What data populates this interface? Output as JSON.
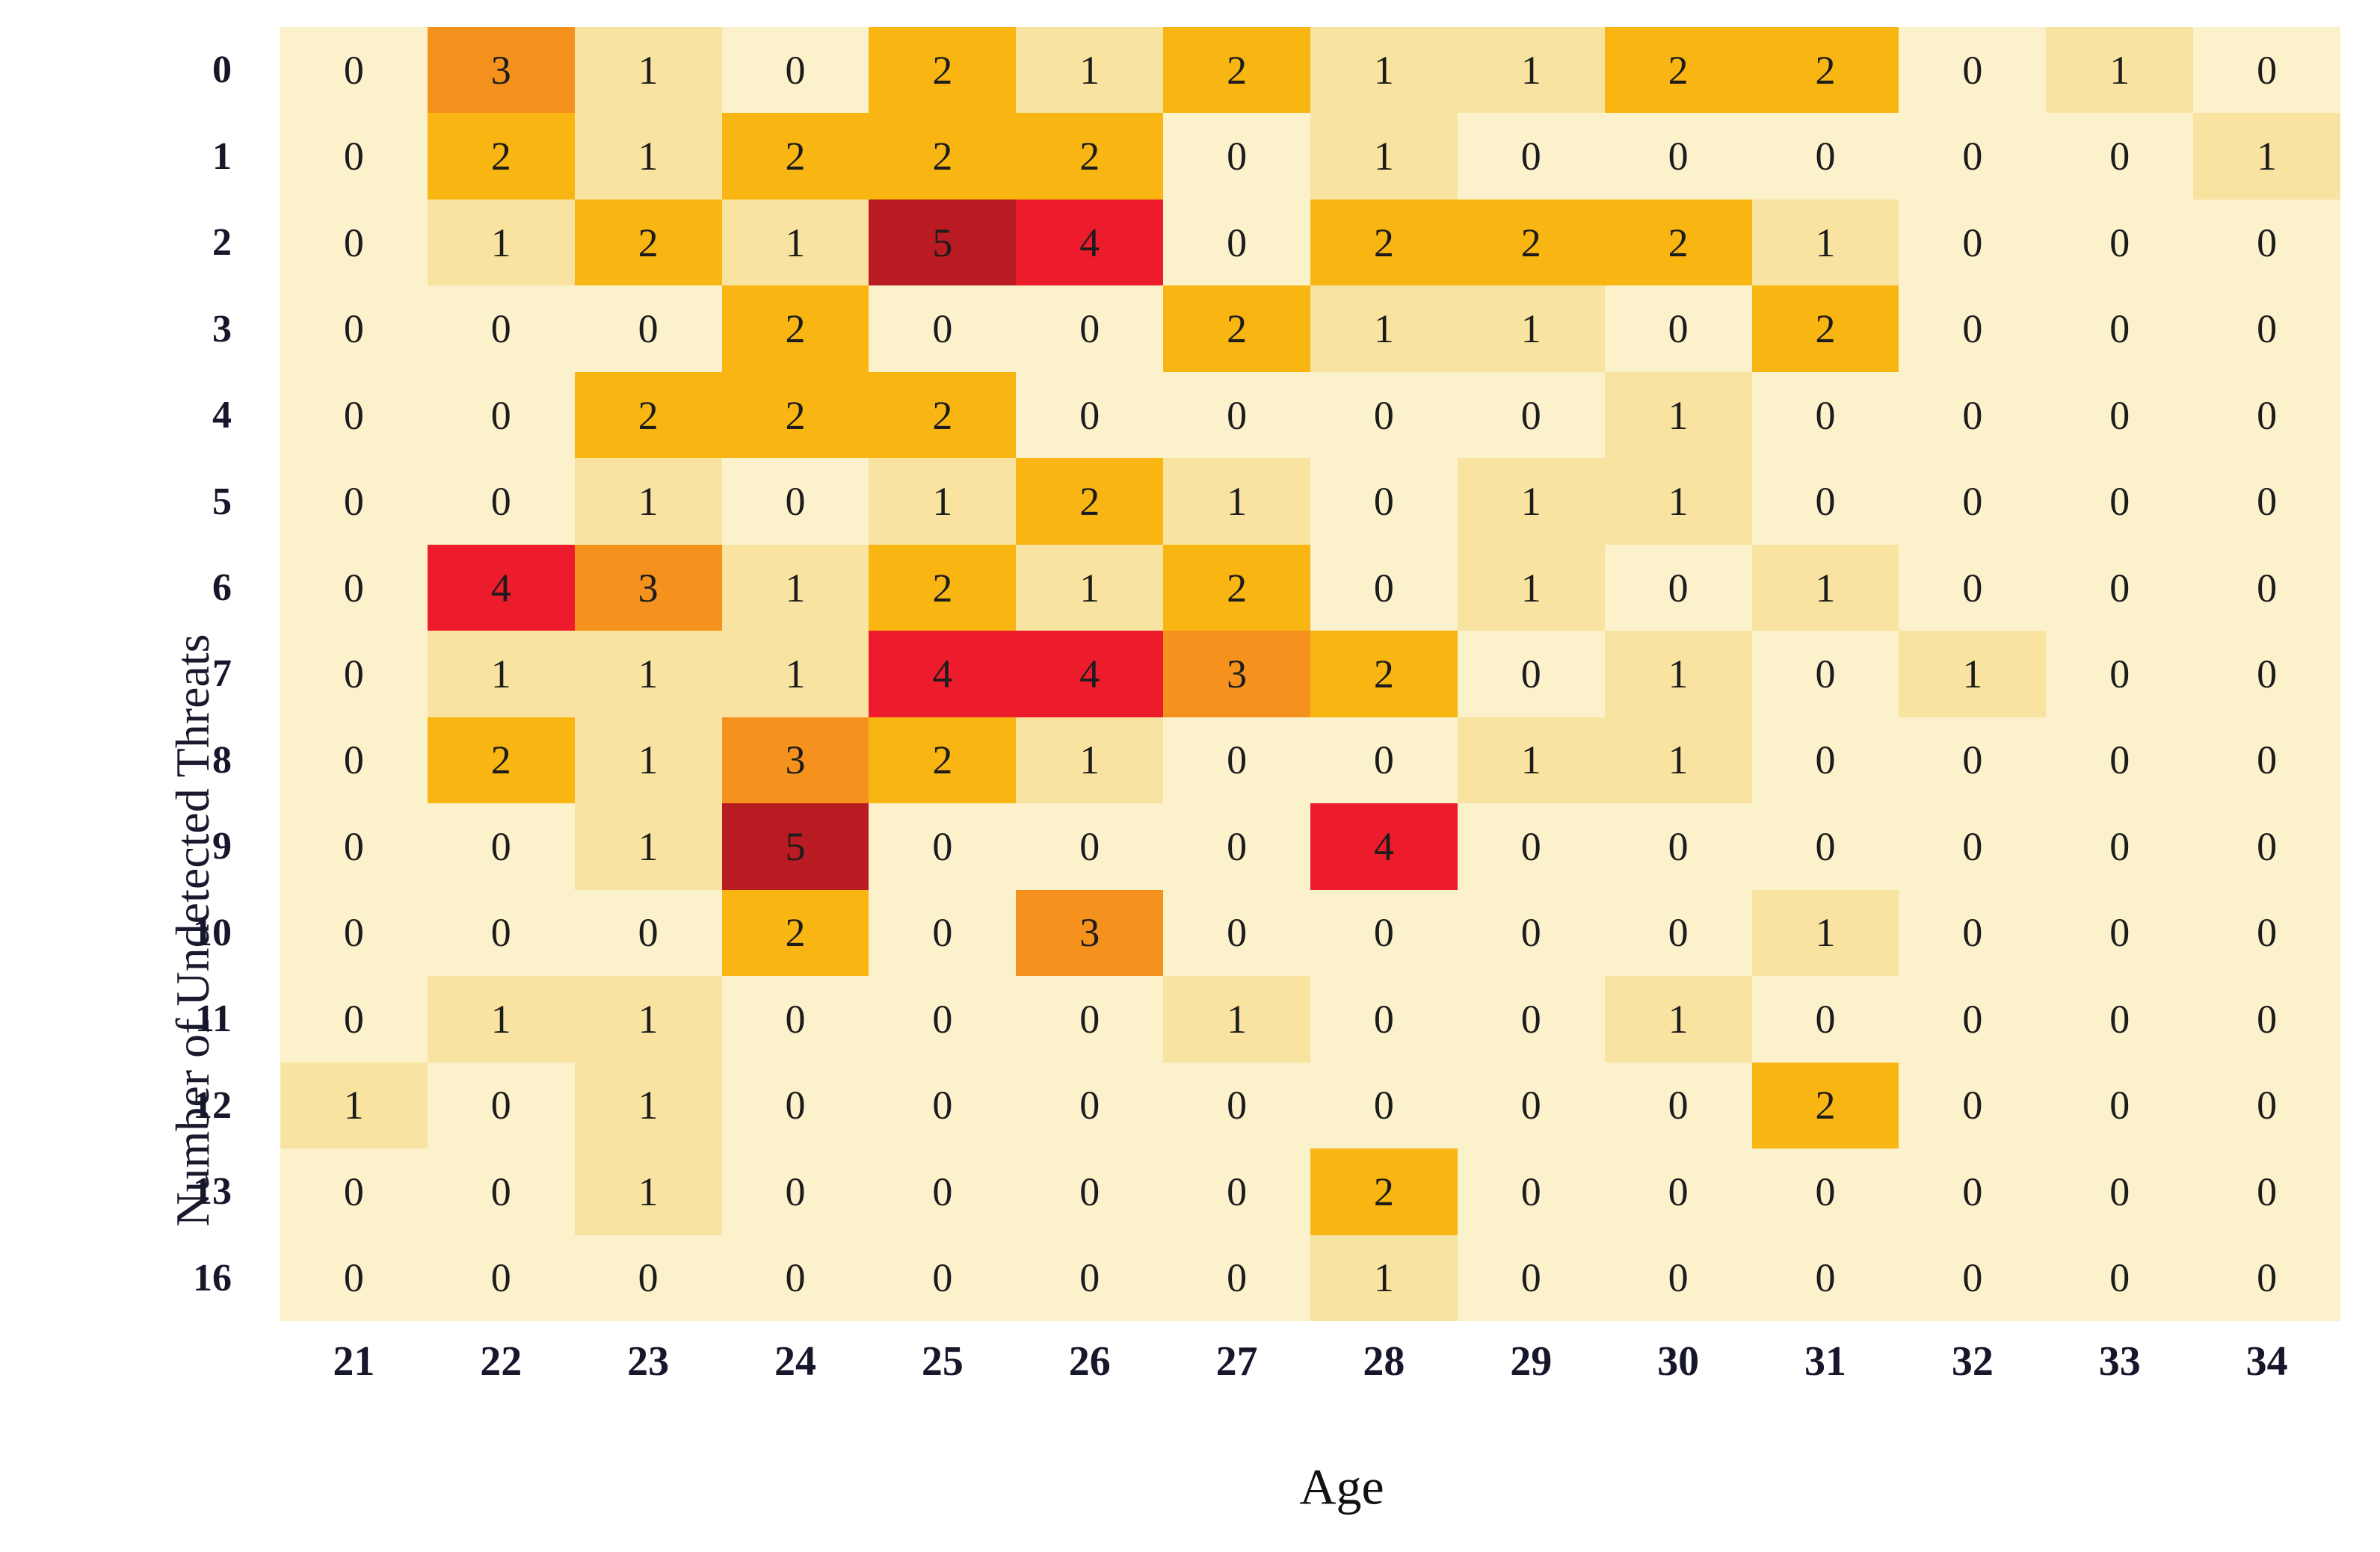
{
  "chart_data": {
    "type": "heatmap",
    "title": "",
    "xlabel": "Age",
    "ylabel": "Number of Undetected Threats",
    "x": [
      21,
      22,
      23,
      24,
      25,
      26,
      27,
      28,
      29,
      30,
      31,
      32,
      33,
      34
    ],
    "y": [
      0,
      1,
      2,
      3,
      4,
      5,
      6,
      7,
      8,
      9,
      10,
      11,
      12,
      13,
      16
    ],
    "values": [
      [
        0,
        3,
        1,
        0,
        2,
        1,
        2,
        1,
        1,
        2,
        2,
        0,
        1,
        0
      ],
      [
        0,
        2,
        1,
        2,
        2,
        2,
        0,
        1,
        0,
        0,
        0,
        0,
        0,
        1
      ],
      [
        0,
        1,
        2,
        1,
        5,
        4,
        0,
        2,
        2,
        2,
        1,
        0,
        0,
        0
      ],
      [
        0,
        0,
        0,
        2,
        0,
        0,
        2,
        1,
        1,
        0,
        2,
        0,
        0,
        0
      ],
      [
        0,
        0,
        2,
        2,
        2,
        0,
        0,
        0,
        0,
        1,
        0,
        0,
        0,
        0
      ],
      [
        0,
        0,
        1,
        0,
        1,
        2,
        1,
        0,
        1,
        1,
        0,
        0,
        0,
        0
      ],
      [
        0,
        4,
        3,
        1,
        2,
        1,
        2,
        0,
        1,
        0,
        1,
        0,
        0,
        0
      ],
      [
        0,
        1,
        1,
        1,
        4,
        4,
        3,
        2,
        0,
        1,
        0,
        1,
        0,
        0
      ],
      [
        0,
        2,
        1,
        3,
        2,
        1,
        0,
        0,
        1,
        1,
        0,
        0,
        0,
        0
      ],
      [
        0,
        0,
        1,
        5,
        0,
        0,
        0,
        4,
        0,
        0,
        0,
        0,
        0,
        0
      ],
      [
        0,
        0,
        0,
        2,
        0,
        3,
        0,
        0,
        0,
        0,
        1,
        0,
        0,
        0
      ],
      [
        0,
        1,
        1,
        0,
        0,
        0,
        1,
        0,
        0,
        1,
        0,
        0,
        0,
        0
      ],
      [
        1,
        0,
        1,
        0,
        0,
        0,
        0,
        0,
        0,
        0,
        2,
        0,
        0,
        0
      ],
      [
        0,
        0,
        1,
        0,
        0,
        0,
        0,
        2,
        0,
        0,
        0,
        0,
        0,
        0
      ],
      [
        0,
        0,
        0,
        0,
        0,
        0,
        0,
        1,
        0,
        0,
        0,
        0,
        0,
        0
      ]
    ],
    "value_colors": {
      "0": "#FBF1CB",
      "1": "#F8E4A0",
      "2": "#F9B511",
      "3": "#F5921D",
      "4": "#EC1C2C",
      "5": "#B81B21"
    },
    "cell_text_color": "#1c1c1c",
    "background": "#FFFFFF",
    "grid": "off",
    "legend": "none",
    "axis_range_note": "x ticks 21-34, y ticks 0-13 then 16"
  }
}
